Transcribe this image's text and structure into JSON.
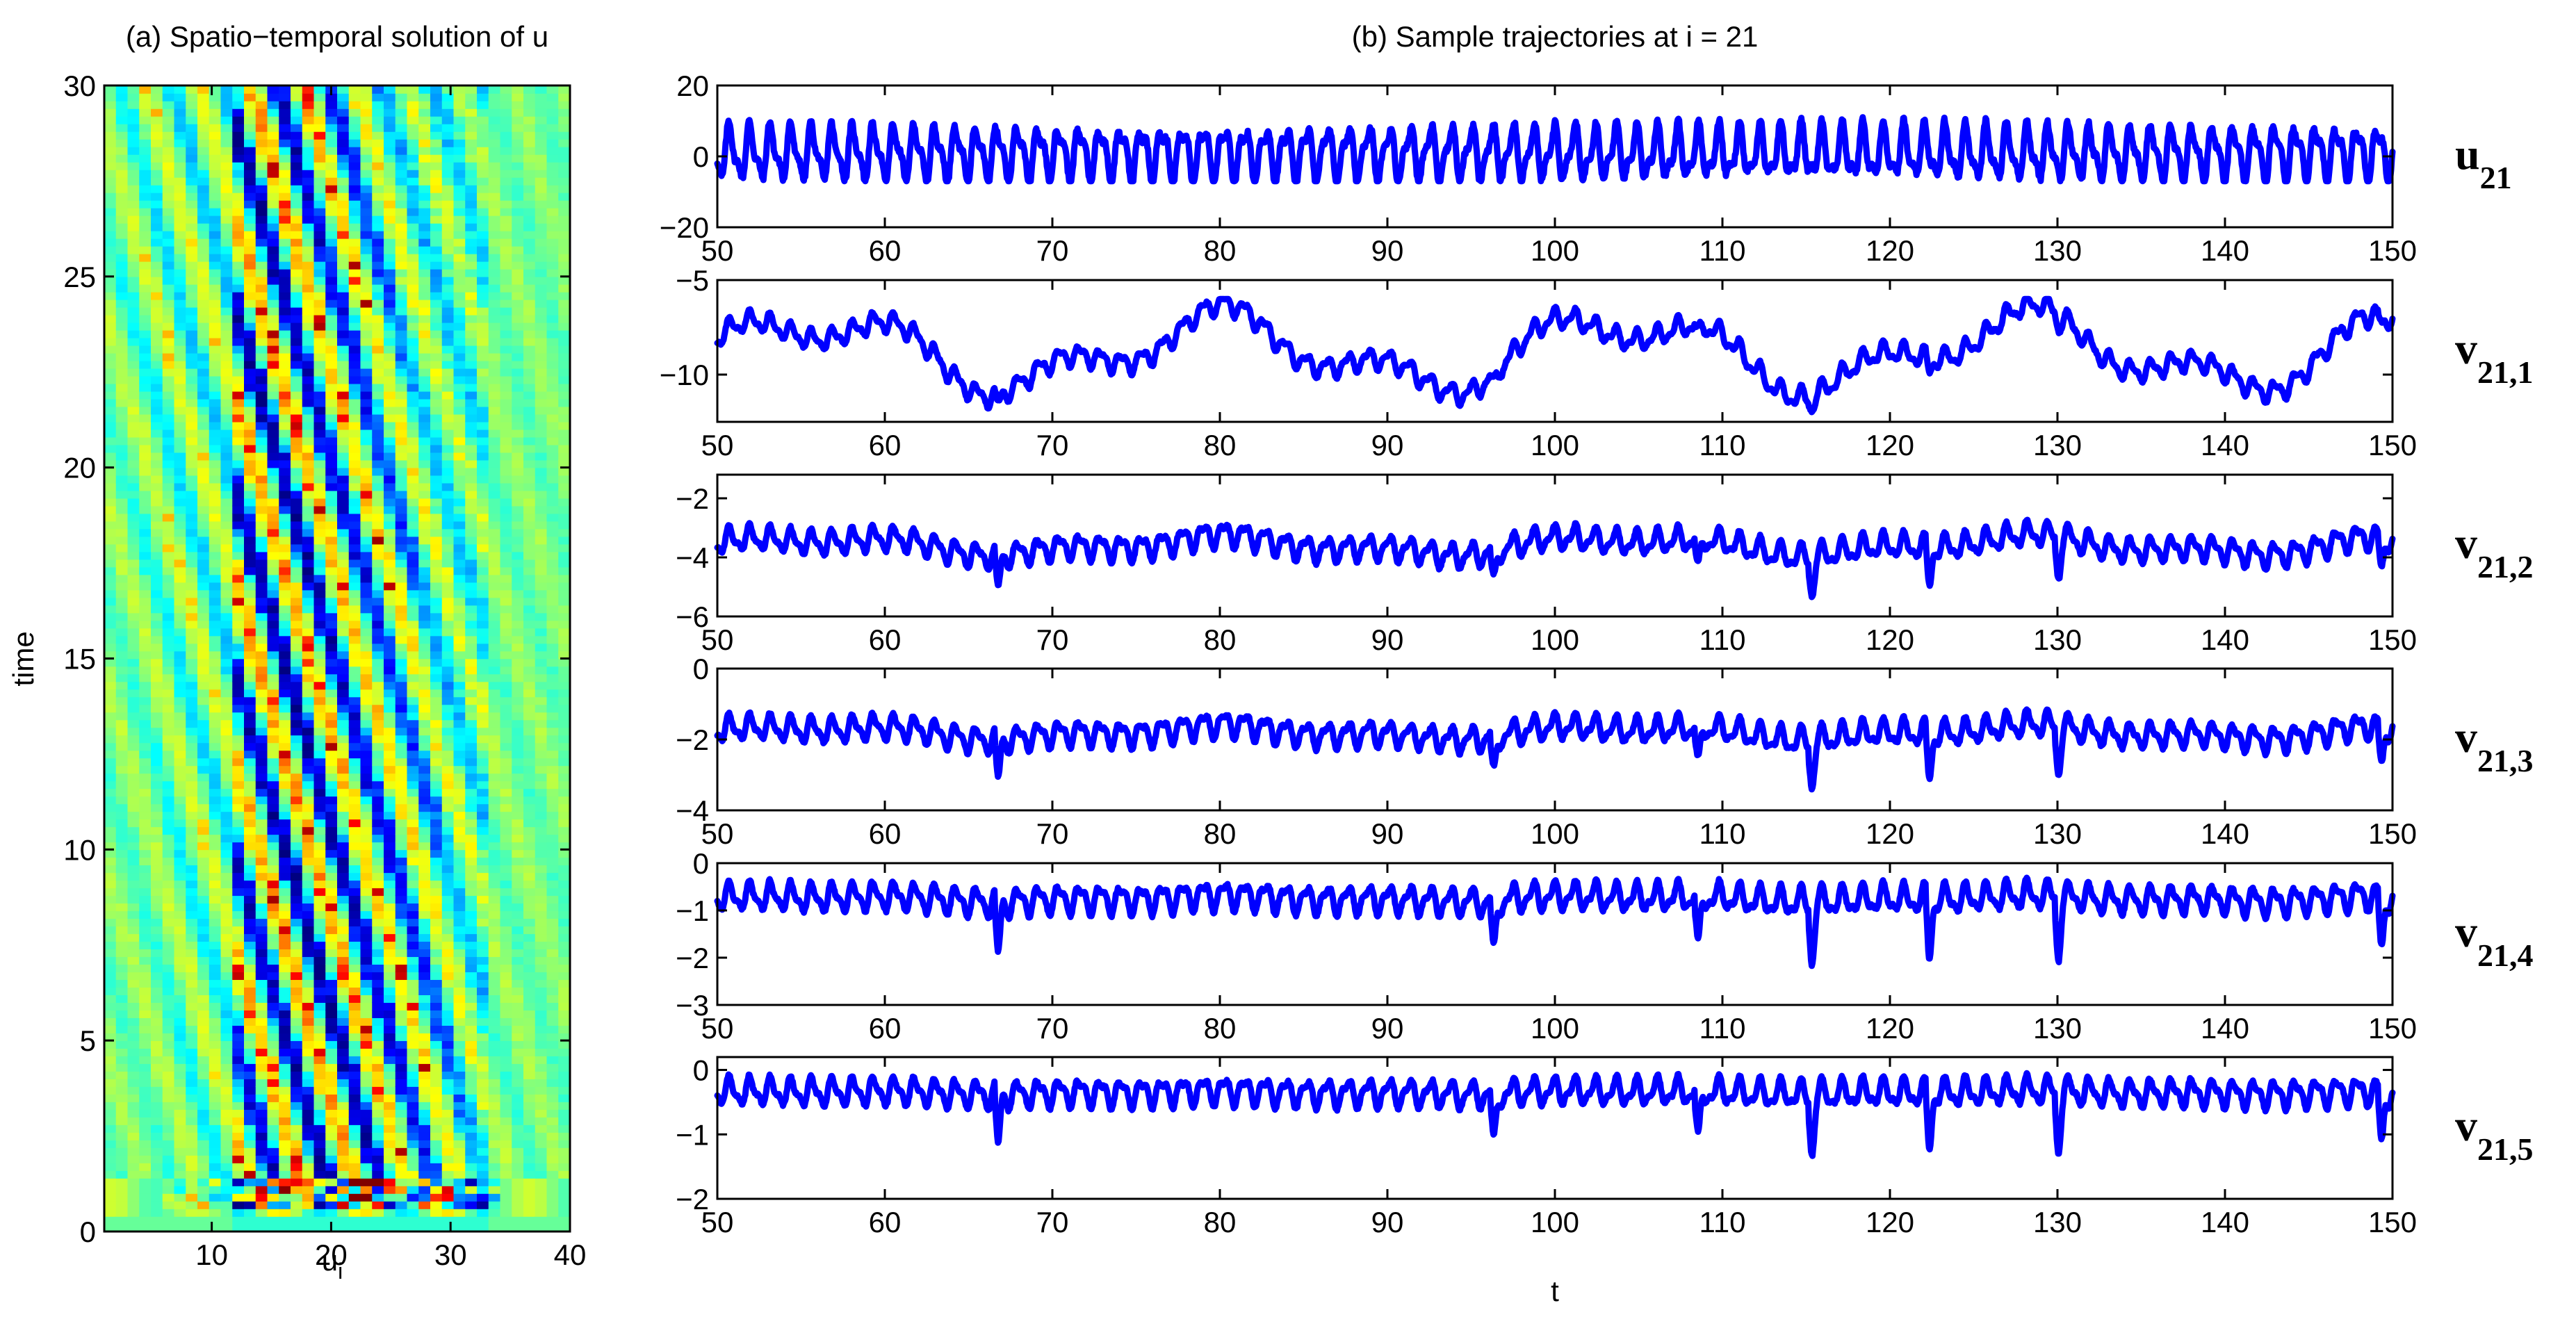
{
  "chart_data": [
    {
      "type": "heatmap",
      "title": "(a) Spatio−temporal solution of u",
      "xlabel": "u",
      "xlabel_sub": "i",
      "ylabel": "time",
      "xlim": [
        1,
        40
      ],
      "ylim": [
        0,
        30
      ],
      "xticks": [
        10,
        20,
        30,
        40
      ],
      "yticks": [
        0,
        5,
        10,
        15,
        20,
        25,
        30
      ],
      "colormap": "jet",
      "pattern": {
        "description_source": "visual",
        "background_value_color": "#4ad0c0",
        "stripe_drift_sites_per_time": 0.45,
        "active_band": [
          12,
          33
        ],
        "initial_burst_time": 1.2
      }
    },
    {
      "type": "line",
      "title": "(b) Sample trajectories at i = 21",
      "xlabel": "t",
      "xlim": [
        50,
        150
      ],
      "xticks": [
        50,
        60,
        70,
        80,
        90,
        100,
        110,
        120,
        130,
        140,
        150
      ],
      "color": "#0000ff",
      "panels": [
        {
          "name": "u",
          "sub": "21",
          "ylim": [
            -20,
            20
          ],
          "yticks": [
            -20,
            0,
            20
          ],
          "mean": 1.0,
          "amp": 6.5,
          "dip_strength": 0.0,
          "drift": 0.0,
          "extent": [
            -7,
            13
          ]
        },
        {
          "name": "v",
          "sub": "21,1",
          "ylim": [
            -12.5,
            -5
          ],
          "yticks": [
            -10,
            -5
          ],
          "mean": -8.8,
          "amp": 0.45,
          "dip_strength": 0.6,
          "drift": 1.6,
          "extent": [
            -12,
            -6
          ]
        },
        {
          "name": "v",
          "sub": "21,2",
          "ylim": [
            -6,
            -1.2
          ],
          "yticks": [
            -6,
            -4,
            -2
          ],
          "mean": -3.6,
          "amp": 0.35,
          "dip_strength": 1.2,
          "drift": 0.25,
          "extent": [
            -5.6,
            -1.9
          ]
        },
        {
          "name": "v",
          "sub": "21,3",
          "ylim": [
            -4,
            0
          ],
          "yticks": [
            -4,
            -2,
            0
          ],
          "mean": -1.8,
          "amp": 0.3,
          "dip_strength": 1.2,
          "drift": 0.15,
          "extent": [
            -3.5,
            -0.8
          ]
        },
        {
          "name": "v",
          "sub": "21,4",
          "ylim": [
            -3,
            0
          ],
          "yticks": [
            -3,
            -2,
            -1,
            0
          ],
          "mean": -0.75,
          "amp": 0.25,
          "dip_strength": 1.2,
          "drift": 0.05,
          "extent": [
            -2.3,
            -0.2
          ]
        },
        {
          "name": "v",
          "sub": "21,5",
          "ylim": [
            -2,
            0.2
          ],
          "yticks": [
            -2,
            -1,
            0
          ],
          "mean": -0.35,
          "amp": 0.18,
          "dip_strength": 0.85,
          "drift": 0.02,
          "extent": [
            -1.4,
            -0.05
          ]
        }
      ]
    }
  ]
}
